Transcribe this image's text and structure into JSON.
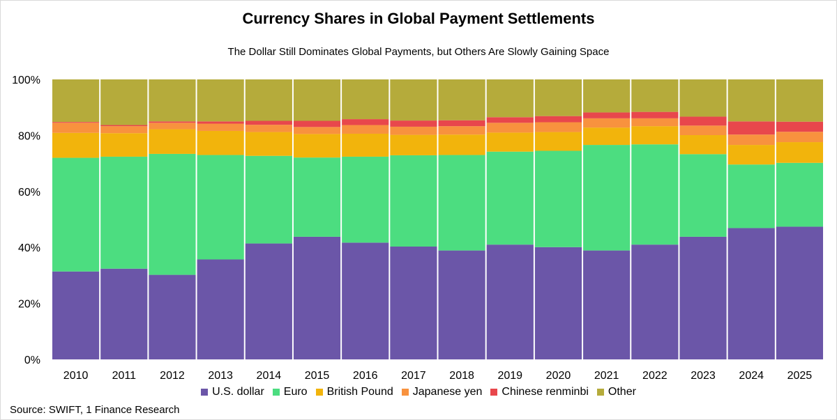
{
  "chart_data": {
    "type": "bar",
    "stacked": true,
    "title": "Currency Shares in Global Payment Settlements",
    "subtitle": "The Dollar Still Dominates Global Payments, but Others Are Slowly Gaining Space",
    "source": "Source: SWIFT, 1 Finance Research",
    "categories": [
      "2010",
      "2011",
      "2012",
      "2013",
      "2014",
      "2015",
      "2016",
      "2017",
      "2018",
      "2019",
      "2020",
      "2021",
      "2022",
      "2023",
      "2024",
      "2025"
    ],
    "ylim": [
      0,
      100
    ],
    "yticks": [
      "0%",
      "20%",
      "40%",
      "60%",
      "80%",
      "100%"
    ],
    "legend_position": "bottom",
    "grid": false,
    "series": [
      {
        "name": "U.S. dollar",
        "color": "#6b56a8",
        "values": [
          31.4,
          32.4,
          30.2,
          35.7,
          41.4,
          43.8,
          41.7,
          40.3,
          38.9,
          41.0,
          40.1,
          38.9,
          41.0,
          43.8,
          46.9,
          47.4
        ]
      },
      {
        "name": "Euro",
        "color": "#4cdd80",
        "values": [
          40.6,
          40.0,
          43.2,
          37.3,
          31.3,
          28.3,
          30.7,
          32.6,
          34.1,
          33.2,
          34.4,
          37.7,
          35.8,
          29.5,
          22.7,
          22.8
        ]
      },
      {
        "name": "British Pound",
        "color": "#f2b40c",
        "values": [
          8.9,
          8.4,
          8.8,
          8.6,
          8.5,
          8.4,
          8.2,
          7.3,
          7.3,
          6.8,
          6.7,
          6.2,
          6.5,
          6.8,
          7.0,
          7.4
        ]
      },
      {
        "name": "Japanese yen",
        "color": "#f8923e",
        "values": [
          3.6,
          2.5,
          2.3,
          2.6,
          2.6,
          2.5,
          3.1,
          2.9,
          3.0,
          3.5,
          3.5,
          3.3,
          2.8,
          3.4,
          3.7,
          3.7
        ]
      },
      {
        "name": "Chinese renminbi",
        "color": "#e8474c",
        "values": [
          0.3,
          0.4,
          0.5,
          0.8,
          1.4,
          2.2,
          2.1,
          2.2,
          2.1,
          2.0,
          2.2,
          2.1,
          2.3,
          3.2,
          4.7,
          3.6
        ]
      },
      {
        "name": "Other",
        "color": "#b5ab3b",
        "values": [
          15.2,
          16.3,
          15.0,
          15.0,
          14.8,
          14.8,
          14.2,
          14.7,
          14.6,
          13.5,
          13.1,
          11.8,
          11.6,
          13.3,
          15.0,
          15.1
        ]
      }
    ]
  }
}
